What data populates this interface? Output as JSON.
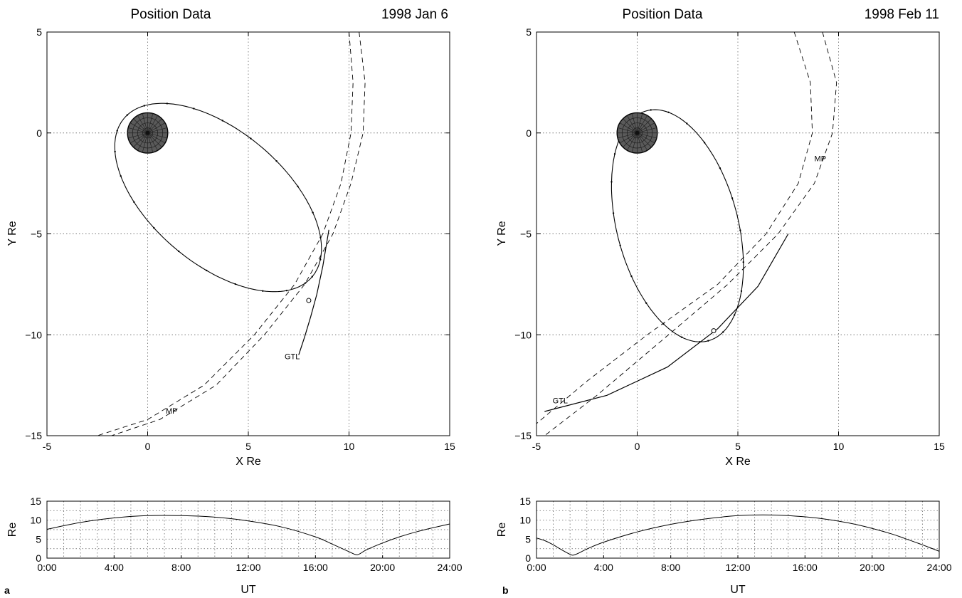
{
  "chart_data": [
    {
      "id": "a-position",
      "type": "line",
      "title": "Position Data",
      "date": "1998  Jan  6",
      "xlabel": "X Re",
      "ylabel": "Y Re",
      "xlim": [
        -5,
        15
      ],
      "ylim": [
        -15,
        5
      ],
      "xticks": [
        -5,
        0,
        5,
        10,
        15
      ],
      "yticks": [
        -15,
        -10,
        -5,
        0,
        5
      ],
      "grid": true,
      "earth": {
        "x": 0,
        "y": 0,
        "r": 1
      },
      "orbit": {
        "cx": 3.5,
        "cy": -3.2,
        "a": 6.1,
        "b": 3.3,
        "angle_deg": -40
      },
      "mp_curves": [
        {
          "x": [
            10.0,
            10.2,
            10.1,
            9.6,
            8.7,
            7.3,
            5.3,
            2.8,
            0.0,
            -2.5
          ],
          "y": [
            5,
            2.5,
            0,
            -2.5,
            -5,
            -7.5,
            -10,
            -12.5,
            -14.2,
            -15
          ]
        },
        {
          "x": [
            10.5,
            10.8,
            10.7,
            10.1,
            9.2,
            7.8,
            5.8,
            3.4,
            0.6,
            -1.8
          ],
          "y": [
            5,
            2.5,
            0,
            -2.5,
            -5,
            -7.5,
            -10,
            -12.5,
            -14.2,
            -15
          ]
        }
      ],
      "gtl": {
        "x": [
          9.0,
          8.7,
          8.4,
          8.1,
          7.8,
          7.5
        ],
        "y": [
          -4.8,
          -6.6,
          -8.0,
          -9.1,
          -10.1,
          -11.0
        ]
      },
      "crossing": {
        "x": 8.0,
        "y": -8.3
      },
      "labels": [
        {
          "text": "GTL",
          "x": 6.8,
          "y": -11.2
        },
        {
          "text": "MP",
          "x": 0.9,
          "y": -13.9
        }
      ]
    },
    {
      "id": "a-distance",
      "type": "line",
      "xlabel": "UT",
      "ylabel": "Re",
      "xticklabels": [
        "0:00",
        "4:00",
        "8:00",
        "12:00",
        "16:00",
        "20:00",
        "24:00"
      ],
      "xlim": [
        0,
        24
      ],
      "ylim": [
        0,
        15
      ],
      "yticks": [
        0,
        5,
        10,
        15
      ],
      "grid": true,
      "x": [
        0,
        2,
        4,
        6,
        8,
        10,
        12,
        14,
        16,
        17,
        18,
        18.5,
        19,
        20,
        21,
        22,
        23,
        24
      ],
      "y": [
        7.6,
        9.4,
        10.6,
        11.2,
        11.2,
        10.8,
        9.8,
        8.2,
        5.6,
        3.7,
        1.7,
        0.9,
        2.1,
        4.0,
        5.6,
        6.9,
        8.0,
        9.0
      ]
    },
    {
      "id": "b-position",
      "type": "line",
      "title": "Position Data",
      "date": "1998  Feb  11",
      "xlabel": "X Re",
      "ylabel": "Y Re",
      "xlim": [
        -5,
        15
      ],
      "ylim": [
        -15,
        5
      ],
      "xticks": [
        -5,
        0,
        5,
        10,
        15
      ],
      "yticks": [
        -15,
        -10,
        -5,
        0,
        5
      ],
      "grid": true,
      "earth": {
        "x": 0,
        "y": 0,
        "r": 1
      },
      "orbit": {
        "cx": 2.0,
        "cy": -4.6,
        "a": 5.9,
        "b": 3.0,
        "angle_deg": -75
      },
      "mp_curves": [
        {
          "x": [
            7.8,
            8.6,
            8.7,
            8.0,
            6.4,
            4.0,
            0.5,
            -2.5,
            -5.0
          ],
          "y": [
            5,
            2.5,
            0,
            -2.5,
            -5,
            -7.5,
            -10.0,
            -12.3,
            -14.4
          ]
        },
        {
          "x": [
            9.2,
            9.9,
            9.7,
            8.8,
            7.0,
            4.5,
            1.2,
            -2.0,
            -4.6
          ],
          "y": [
            5,
            2.5,
            0,
            -2.5,
            -5,
            -7.5,
            -10.3,
            -13.0,
            -15.0
          ]
        }
      ],
      "gtl": {
        "x": [
          7.5,
          6.0,
          4.0,
          1.5,
          -1.5,
          -4.6
        ],
        "y": [
          -5.0,
          -7.6,
          -9.7,
          -11.6,
          -13.0,
          -13.8
        ]
      },
      "crossing": {
        "x": 3.8,
        "y": -9.8
      },
      "labels": [
        {
          "text": "GTL",
          "x": -4.2,
          "y": -13.4
        },
        {
          "text": "MP",
          "x": 8.8,
          "y": -1.4
        }
      ]
    },
    {
      "id": "b-distance",
      "type": "line",
      "xlabel": "UT",
      "ylabel": "Re",
      "xticklabels": [
        "0:00",
        "4:00",
        "8:00",
        "12:00",
        "16:00",
        "20:00",
        "24:00"
      ],
      "xlim": [
        0,
        24
      ],
      "ylim": [
        0,
        15
      ],
      "yticks": [
        0,
        5,
        10,
        15
      ],
      "grid": true,
      "x": [
        0,
        0.5,
        1,
        1.5,
        2,
        2.2,
        2.5,
        3,
        4,
        6,
        8,
        10,
        12,
        13.5,
        15,
        17,
        19,
        21,
        22,
        23,
        24
      ],
      "y": [
        5.3,
        4.6,
        3.5,
        2.2,
        1.0,
        0.8,
        1.3,
        2.4,
        4.2,
        6.9,
        8.9,
        10.3,
        11.2,
        11.4,
        11.2,
        10.4,
        8.9,
        6.6,
        5.1,
        3.5,
        1.8
      ]
    }
  ],
  "panel_letters": [
    "a",
    "b"
  ]
}
